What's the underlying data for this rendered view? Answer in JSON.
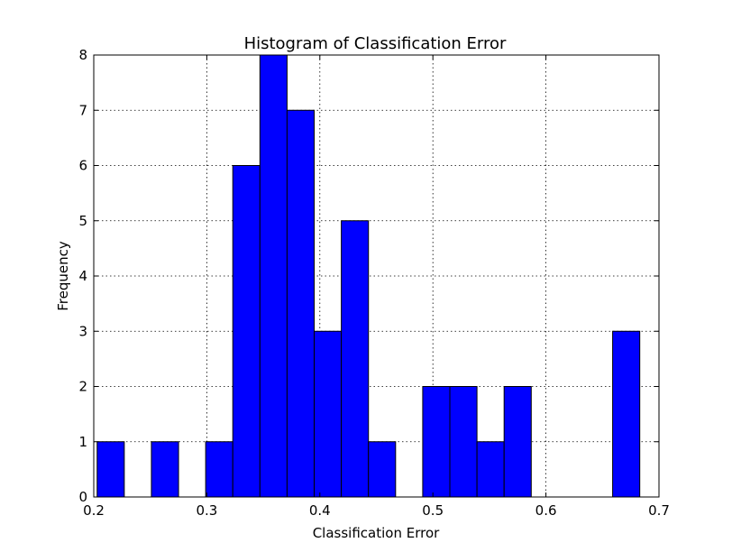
{
  "chart_data": {
    "type": "bar",
    "title": "Histogram of Classification Error",
    "xlabel": "Classification Error",
    "ylabel": "Frequency",
    "xlim": [
      0.2,
      0.7
    ],
    "ylim": [
      0,
      8
    ],
    "xticks": [
      "0.2",
      "0.3",
      "0.4",
      "0.5",
      "0.6",
      "0.7"
    ],
    "yticks": [
      "0",
      "1",
      "2",
      "3",
      "4",
      "5",
      "6",
      "7",
      "8"
    ],
    "grid": true,
    "color": "#0000ff",
    "bins": [
      {
        "x0": 0.203,
        "x1": 0.227,
        "value": 1
      },
      {
        "x0": 0.227,
        "x1": 0.251,
        "value": 0
      },
      {
        "x0": 0.251,
        "x1": 0.275,
        "value": 1
      },
      {
        "x0": 0.275,
        "x1": 0.299,
        "value": 0
      },
      {
        "x0": 0.299,
        "x1": 0.323,
        "value": 1
      },
      {
        "x0": 0.323,
        "x1": 0.347,
        "value": 6
      },
      {
        "x0": 0.347,
        "x1": 0.371,
        "value": 8
      },
      {
        "x0": 0.371,
        "x1": 0.395,
        "value": 7
      },
      {
        "x0": 0.395,
        "x1": 0.419,
        "value": 3
      },
      {
        "x0": 0.419,
        "x1": 0.443,
        "value": 5
      },
      {
        "x0": 0.443,
        "x1": 0.467,
        "value": 1
      },
      {
        "x0": 0.467,
        "x1": 0.491,
        "value": 0
      },
      {
        "x0": 0.491,
        "x1": 0.515,
        "value": 2
      },
      {
        "x0": 0.515,
        "x1": 0.539,
        "value": 2
      },
      {
        "x0": 0.539,
        "x1": 0.563,
        "value": 1
      },
      {
        "x0": 0.563,
        "x1": 0.587,
        "value": 2
      },
      {
        "x0": 0.587,
        "x1": 0.611,
        "value": 0
      },
      {
        "x0": 0.611,
        "x1": 0.635,
        "value": 0
      },
      {
        "x0": 0.635,
        "x1": 0.659,
        "value": 0
      },
      {
        "x0": 0.659,
        "x1": 0.683,
        "value": 3
      }
    ]
  }
}
